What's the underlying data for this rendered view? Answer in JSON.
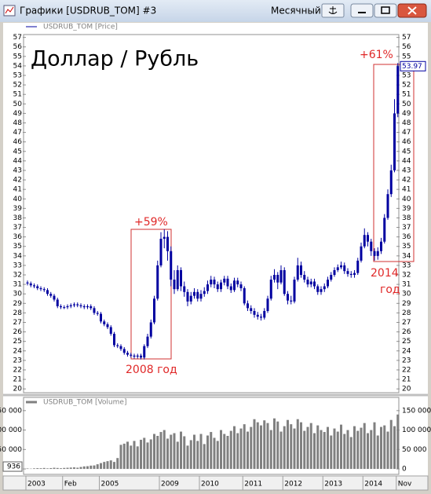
{
  "window": {
    "title": "Графики [USDRUB_TOM] #3",
    "timeframe": "Месячный"
  },
  "chart_data": [
    {
      "type": "candlestick",
      "title": "Доллар / Рубль",
      "legend": "USDRUB_TOM [Price]",
      "color": "#0000a0",
      "categories": [
        "2003",
        null,
        null,
        null,
        null,
        null,
        null,
        null,
        null,
        null,
        null,
        "Feb",
        null,
        null,
        null,
        null,
        null,
        null,
        null,
        null,
        null,
        null,
        "2005",
        null,
        null,
        null,
        null,
        null,
        null,
        null,
        null,
        null,
        null,
        null,
        null,
        null,
        null,
        null,
        null,
        null,
        "2009",
        null,
        null,
        null,
        null,
        null,
        null,
        null,
        null,
        null,
        null,
        null,
        "2010",
        null,
        null,
        null,
        null,
        null,
        null,
        null,
        null,
        null,
        null,
        null,
        null,
        "2011",
        null,
        null,
        null,
        null,
        null,
        null,
        null,
        null,
        null,
        null,
        null,
        "2012",
        null,
        null,
        null,
        null,
        null,
        null,
        null,
        null,
        null,
        null,
        null,
        "2013",
        null,
        null,
        null,
        null,
        null,
        null,
        null,
        null,
        null,
        null,
        null,
        "2014",
        null,
        null,
        null,
        null,
        null,
        null,
        null,
        null,
        null,
        "Nov"
      ],
      "open": [
        31.2,
        31.1,
        30.9,
        30.8,
        30.6,
        30.5,
        30.4,
        30.0,
        29.8,
        29.4,
        28.7,
        28.6,
        28.6,
        28.7,
        28.8,
        28.9,
        28.8,
        28.7,
        28.6,
        28.7,
        28.5,
        28.0,
        27.9,
        27.1,
        26.8,
        26.5,
        25.8,
        24.6,
        24.5,
        24.2,
        23.8,
        23.6,
        23.5,
        23.4,
        23.5,
        23.3,
        24.5,
        25.5,
        27.0,
        29.5,
        33.0,
        35.8,
        36.0,
        34.5,
        31.5,
        30.5,
        32.5,
        30.8,
        30.2,
        29.2,
        29.8,
        30.2,
        29.5,
        30.0,
        30.3,
        31.0,
        31.5,
        31.0,
        30.5,
        31.2,
        31.6,
        30.8,
        30.4,
        31.4,
        31.0,
        30.6,
        29.0,
        28.5,
        28.2,
        27.8,
        27.6,
        27.5,
        28.2,
        29.5,
        31.5,
        32.0,
        31.2,
        32.5,
        30.0,
        29.3,
        29.2,
        31.5,
        33.0,
        32.0,
        31.5,
        31.0,
        31.3,
        30.8,
        30.2,
        30.5,
        30.8,
        31.5,
        32.0,
        32.5,
        32.8,
        33.0,
        32.4,
        32.1,
        32.0,
        32.2,
        33.5,
        35.0,
        36.2,
        35.5,
        34.5,
        34.0,
        34.5,
        35.5,
        38.0,
        40.5,
        43.0,
        49.0
      ],
      "high": [
        31.4,
        31.3,
        31.1,
        31.0,
        30.8,
        30.7,
        30.6,
        30.2,
        30.0,
        29.6,
        28.9,
        28.8,
        28.9,
        29.0,
        29.1,
        29.1,
        29.0,
        28.9,
        28.9,
        28.9,
        28.7,
        28.2,
        28.1,
        27.3,
        27.0,
        26.7,
        26.0,
        24.8,
        24.7,
        24.4,
        24.0,
        23.8,
        23.7,
        23.7,
        23.7,
        24.7,
        25.8,
        27.3,
        29.8,
        33.5,
        36.5,
        36.8,
        36.6,
        35.0,
        32.5,
        33.0,
        32.8,
        31.3,
        30.5,
        30.2,
        30.6,
        30.5,
        30.4,
        30.7,
        31.4,
        31.9,
        31.8,
        31.3,
        31.5,
        31.9,
        31.9,
        31.1,
        31.7,
        31.7,
        31.3,
        30.8,
        29.3,
        28.8,
        28.5,
        28.1,
        27.9,
        28.5,
        29.8,
        31.9,
        32.6,
        32.3,
        33.0,
        32.8,
        30.3,
        29.8,
        31.8,
        33.8,
        33.4,
        32.4,
        31.8,
        31.6,
        31.6,
        31.0,
        30.8,
        31.1,
        31.8,
        32.3,
        32.8,
        33.1,
        33.4,
        33.3,
        32.7,
        32.4,
        32.5,
        33.8,
        35.4,
        36.9,
        36.5,
        35.8,
        34.8,
        34.9,
        35.9,
        38.4,
        41.0,
        43.6,
        50.5,
        54.3
      ],
      "low": [
        30.9,
        30.7,
        30.6,
        30.4,
        30.3,
        30.2,
        29.8,
        29.6,
        29.2,
        28.5,
        28.4,
        28.4,
        28.4,
        28.5,
        28.6,
        28.6,
        28.5,
        28.4,
        28.4,
        28.3,
        27.8,
        27.7,
        26.9,
        26.6,
        26.3,
        25.6,
        24.4,
        24.3,
        24.0,
        23.6,
        23.4,
        23.3,
        23.2,
        23.2,
        23.1,
        23.1,
        24.3,
        25.3,
        26.8,
        29.3,
        32.8,
        34.8,
        33.5,
        30.8,
        30.0,
        30.3,
        30.3,
        29.7,
        28.7,
        28.9,
        29.5,
        29.2,
        29.2,
        29.7,
        30.0,
        30.7,
        30.6,
        30.2,
        30.2,
        30.9,
        30.5,
        30.1,
        30.2,
        30.7,
        30.3,
        28.8,
        28.2,
        27.9,
        27.5,
        27.3,
        27.2,
        27.3,
        28.0,
        29.3,
        31.2,
        30.5,
        31.0,
        29.8,
        28.9,
        28.9,
        29.0,
        31.3,
        31.7,
        31.2,
        30.7,
        30.7,
        30.5,
        29.9,
        29.9,
        30.2,
        30.6,
        31.3,
        31.8,
        32.3,
        32.6,
        32.1,
        31.8,
        31.7,
        31.7,
        32.0,
        33.3,
        34.8,
        35.0,
        34.0,
        33.5,
        33.6,
        34.2,
        35.3,
        37.8,
        40.2,
        42.8,
        48.6
      ],
      "close": [
        31.1,
        30.9,
        30.8,
        30.6,
        30.5,
        30.4,
        30.0,
        29.8,
        29.4,
        28.7,
        28.6,
        28.6,
        28.7,
        28.8,
        28.9,
        28.8,
        28.7,
        28.6,
        28.7,
        28.5,
        28.0,
        27.9,
        27.1,
        26.8,
        26.5,
        25.8,
        24.6,
        24.5,
        24.2,
        23.8,
        23.6,
        23.5,
        23.4,
        23.5,
        23.3,
        24.5,
        25.5,
        27.0,
        29.5,
        33.0,
        35.8,
        36.0,
        34.5,
        31.5,
        30.5,
        32.5,
        30.8,
        30.2,
        29.2,
        29.8,
        30.2,
        29.5,
        30.0,
        30.3,
        31.0,
        31.5,
        31.0,
        30.5,
        31.2,
        31.6,
        30.8,
        30.4,
        31.4,
        31.0,
        30.6,
        29.0,
        28.5,
        28.2,
        27.8,
        27.6,
        27.5,
        28.2,
        29.5,
        31.5,
        32.0,
        31.2,
        32.5,
        30.0,
        29.3,
        29.2,
        31.5,
        33.0,
        32.0,
        31.5,
        31.0,
        31.3,
        30.8,
        30.2,
        30.5,
        30.8,
        31.5,
        32.0,
        32.5,
        32.8,
        33.0,
        32.4,
        32.1,
        32.0,
        32.2,
        33.5,
        35.0,
        36.2,
        35.5,
        34.5,
        34.0,
        34.5,
        35.5,
        38.0,
        40.5,
        43.0,
        49.0,
        53.97
      ],
      "ylim": [
        19.6,
        57.3
      ],
      "yticks": [
        20,
        21,
        22,
        23,
        24,
        25,
        26,
        27,
        28,
        29,
        30,
        31,
        32,
        33,
        34,
        35,
        36,
        37,
        38,
        39,
        40,
        41,
        42,
        43,
        44,
        45,
        46,
        47,
        48,
        49,
        50,
        51,
        52,
        53,
        54,
        55,
        56,
        57
      ],
      "annotations": [
        "+59%",
        "2008 год",
        "+61%",
        "2014",
        "год"
      ]
    },
    {
      "type": "bar",
      "legend": "USDRUB_TOM [Volume]",
      "color": "#808080",
      "current_value_label": "936",
      "values": [
        1200,
        800,
        1500,
        2000,
        1800,
        2500,
        1500,
        2200,
        3000,
        2500,
        1800,
        2600,
        3000,
        3500,
        4000,
        3200,
        5000,
        6500,
        7000,
        8500,
        9000,
        12000,
        15000,
        18000,
        20000,
        22000,
        18000,
        28000,
        62000,
        65000,
        70000,
        60000,
        72000,
        58000,
        75000,
        80000,
        68000,
        76000,
        90000,
        85000,
        95000,
        100000,
        78000,
        88000,
        92000,
        70000,
        96000,
        84000,
        60000,
        74000,
        88000,
        72000,
        90000,
        64000,
        86000,
        95000,
        80000,
        72000,
        100000,
        90000,
        85000,
        98000,
        110000,
        92000,
        104000,
        115000,
        96000,
        108000,
        128000,
        120000,
        112000,
        125000,
        118000,
        100000,
        130000,
        122000,
        96000,
        110000,
        126000,
        115000,
        104000,
        128000,
        120000,
        98000,
        108000,
        118000,
        92000,
        112000,
        100000,
        95000,
        108000,
        86000,
        104000,
        96000,
        114000,
        90000,
        100000,
        82000,
        110000,
        98000,
        106000,
        118000,
        92000,
        100000,
        120000,
        86000,
        108000,
        112000,
        96000,
        126000,
        110000,
        140000
      ],
      "ylim": [
        -14000,
        184000
      ],
      "yticks": [
        0,
        {
          "value": 50000,
          "label": "50 000"
        },
        {
          "value": 100000,
          "label": "100 000"
        },
        {
          "value": 150000,
          "label": "150 000"
        }
      ]
    }
  ]
}
